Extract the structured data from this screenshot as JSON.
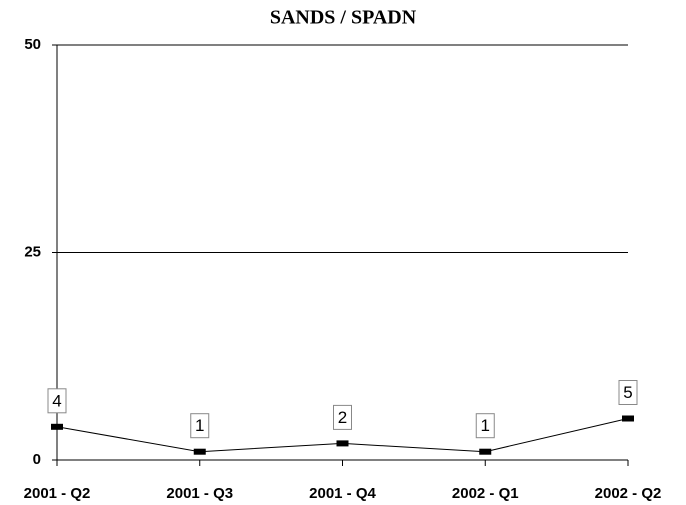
{
  "chart_data": {
    "type": "line",
    "title": "SANDS / SPADN",
    "categories": [
      "2001 - Q2",
      "2001 - Q3",
      "2001 - Q4",
      "2002 - Q1",
      "2002 - Q2"
    ],
    "series": [
      {
        "name": "SANDS / SPADN",
        "color": "#000000",
        "values": [
          4,
          1,
          2,
          1,
          5
        ]
      }
    ],
    "ylim": [
      0,
      50
    ],
    "yticks": [
      0,
      25,
      50
    ],
    "grid": true
  }
}
